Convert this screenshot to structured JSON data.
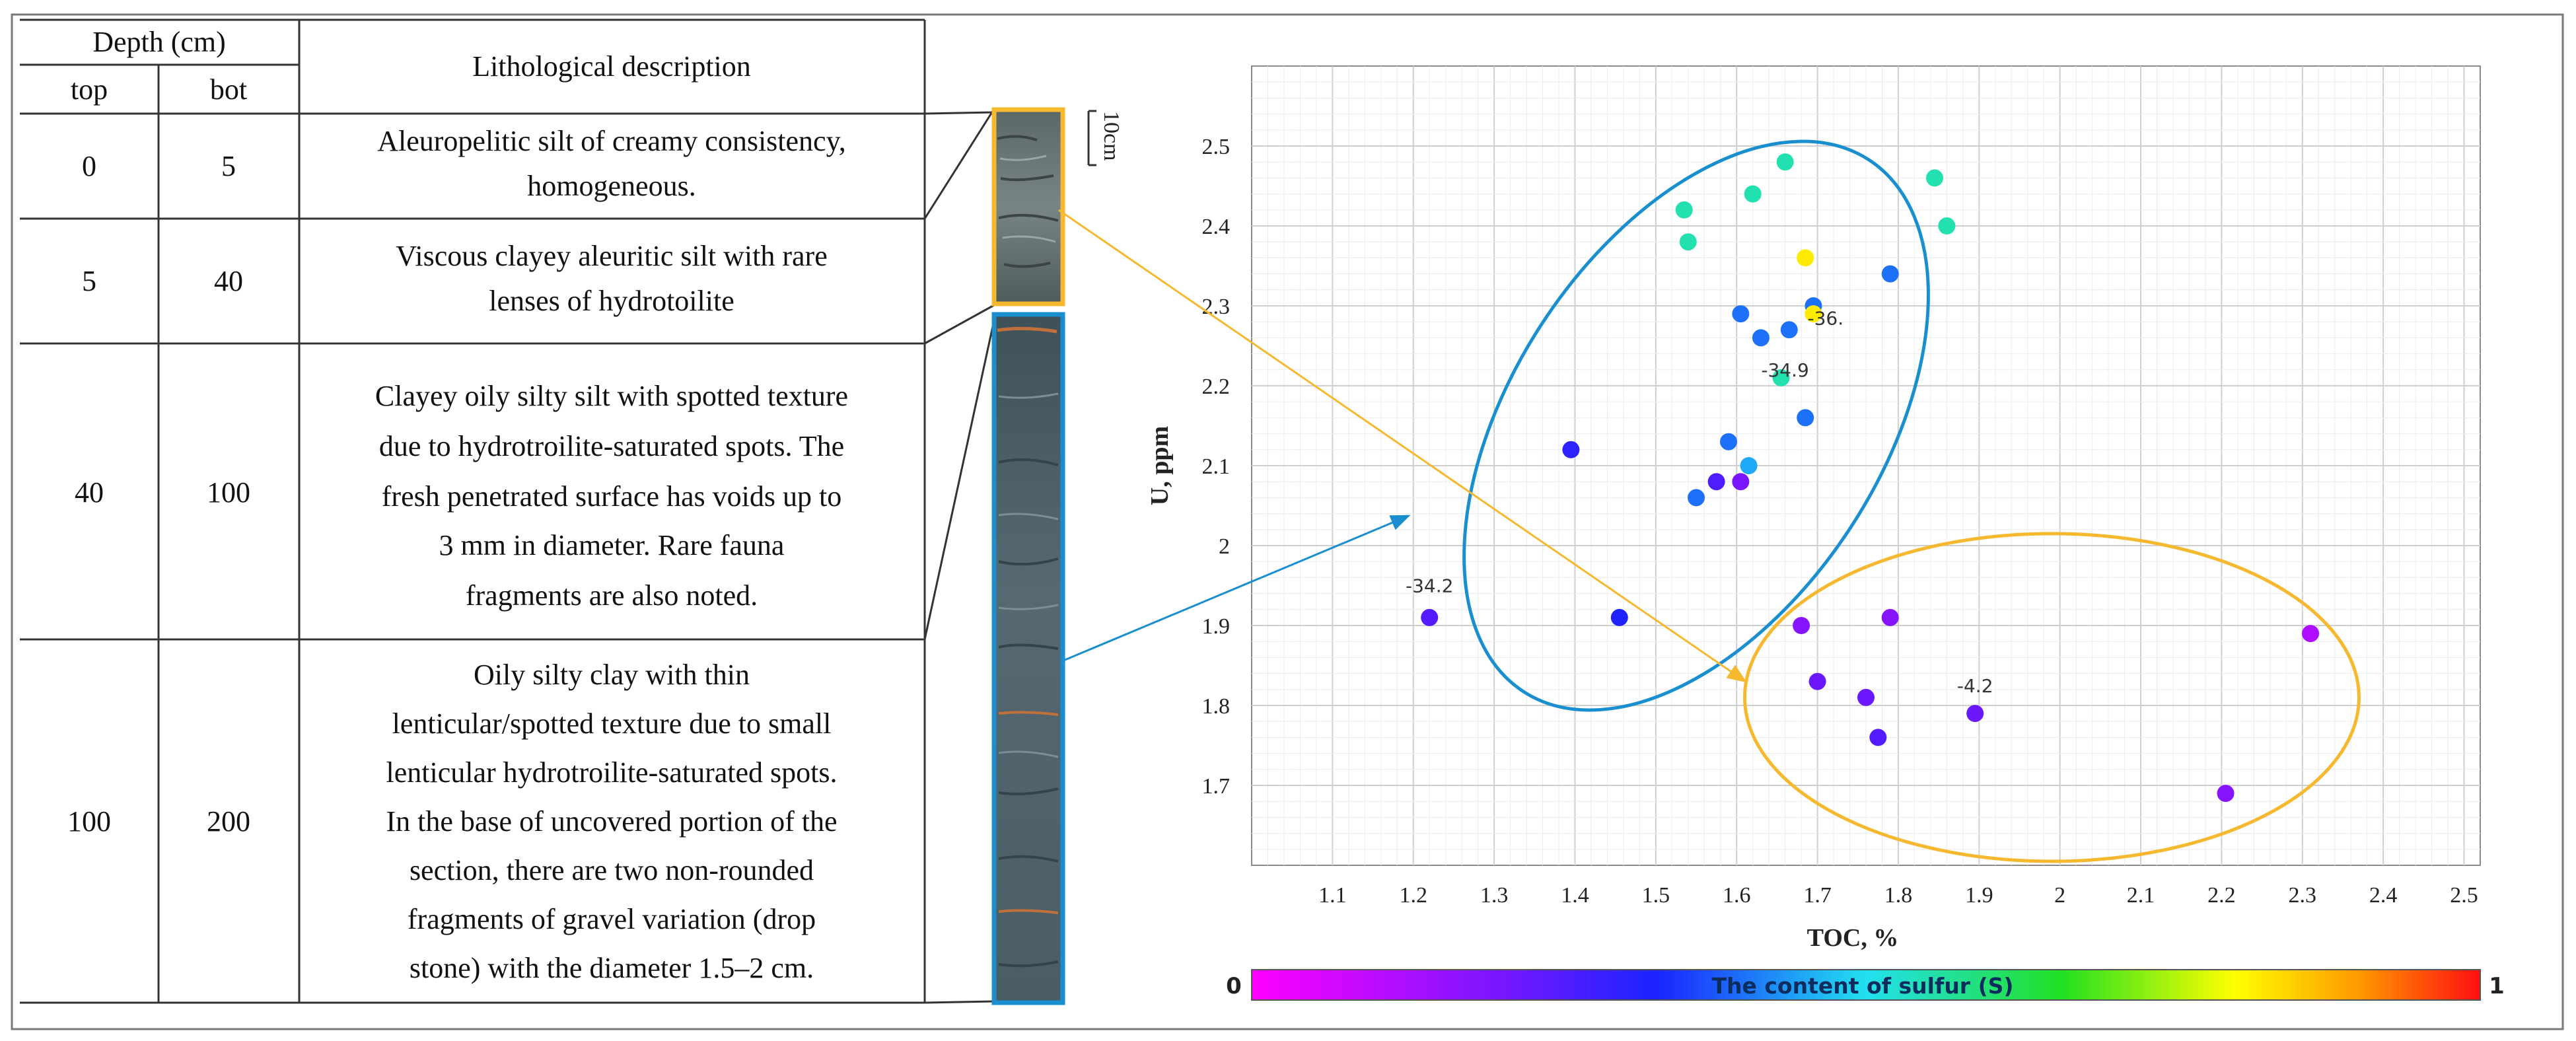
{
  "table": {
    "depth_header": "Depth (cm)",
    "top_header": "top",
    "bot_header": "bot",
    "desc_header": "Lithological description",
    "rows": [
      {
        "top": "0",
        "bot": "5",
        "lines": [
          "Aleuropelitic silt of creamy consistency,",
          "homogeneous."
        ]
      },
      {
        "top": "5",
        "bot": "40",
        "lines": [
          "Viscous clayey aleuritic silt with rare",
          "lenses of hydrotoilite"
        ]
      },
      {
        "top": "40",
        "bot": "100",
        "lines": [
          "Clayey oily silty silt with spotted texture",
          "due to hydrotroilite-saturated spots. The",
          "fresh penetrated surface has voids up to",
          "3 mm in diameter. Rare fauna",
          "fragments are also noted."
        ]
      },
      {
        "top": "100",
        "bot": "200",
        "lines": [
          "Oily silty clay with thin",
          "lenticular/spotted texture due to small",
          "lenticular hydrotroilite-saturated spots.",
          "In the base of uncovered portion of the",
          "section, there are two non-rounded",
          "fragments of gravel variation (drop",
          "stone) with the diameter 1.5–2 cm."
        ]
      }
    ]
  },
  "core": {
    "scale_label": "10cm"
  },
  "colors": {
    "blue_group": "#1a8fd0",
    "yellow_group": "#f5b82e",
    "border": "#555555"
  },
  "chart_data": {
    "type": "scatter",
    "xlabel": "TOC, %",
    "ylabel": "U, ppm",
    "xlim": [
      1.0,
      2.52
    ],
    "ylim": [
      1.6,
      2.6
    ],
    "xticks": [
      "1.1",
      "1.2",
      "1.3",
      "1.4",
      "1.5",
      "1.6",
      "1.7",
      "1.8",
      "1.9",
      "2",
      "2.1",
      "2.2",
      "2.3",
      "2.4",
      "2.5"
    ],
    "yticks": [
      "1.7",
      "1.8",
      "1.9",
      "2",
      "2.1",
      "2.2",
      "2.3",
      "2.4",
      "2.5"
    ],
    "colorbar": {
      "min_label": "0",
      "max_label": "1",
      "title": "The content of sulfur (S)"
    },
    "points": [
      {
        "x": 1.535,
        "y": 2.42,
        "c": 0.55
      },
      {
        "x": 1.54,
        "y": 2.38,
        "c": 0.55
      },
      {
        "x": 1.62,
        "y": 2.44,
        "c": 0.55
      },
      {
        "x": 1.66,
        "y": 2.48,
        "c": 0.55
      },
      {
        "x": 1.845,
        "y": 2.46,
        "c": 0.55
      },
      {
        "x": 1.86,
        "y": 2.4,
        "c": 0.55
      },
      {
        "x": 1.685,
        "y": 2.36,
        "c": 0.82
      },
      {
        "x": 1.79,
        "y": 2.34,
        "c": 0.4
      },
      {
        "x": 1.695,
        "y": 2.3,
        "c": 0.4
      },
      {
        "x": 1.695,
        "y": 2.29,
        "c": 0.82
      },
      {
        "x": 1.605,
        "y": 2.29,
        "c": 0.4
      },
      {
        "x": 1.665,
        "y": 2.27,
        "c": 0.4
      },
      {
        "x": 1.63,
        "y": 2.26,
        "c": 0.4
      },
      {
        "x": 1.655,
        "y": 2.21,
        "c": 0.55
      },
      {
        "x": 1.685,
        "y": 2.16,
        "c": 0.4
      },
      {
        "x": 1.59,
        "y": 2.13,
        "c": 0.4
      },
      {
        "x": 1.395,
        "y": 2.12,
        "c": 0.3
      },
      {
        "x": 1.615,
        "y": 2.1,
        "c": 0.45
      },
      {
        "x": 1.575,
        "y": 2.08,
        "c": 0.26
      },
      {
        "x": 1.605,
        "y": 2.08,
        "c": 0.2
      },
      {
        "x": 1.55,
        "y": 2.06,
        "c": 0.4
      },
      {
        "x": 1.22,
        "y": 1.91,
        "c": 0.25
      },
      {
        "x": 1.455,
        "y": 1.91,
        "c": 0.32
      },
      {
        "x": 1.68,
        "y": 1.9,
        "c": 0.18
      },
      {
        "x": 1.79,
        "y": 1.91,
        "c": 0.18
      },
      {
        "x": 2.31,
        "y": 1.89,
        "c": 0.12
      },
      {
        "x": 1.7,
        "y": 1.83,
        "c": 0.22
      },
      {
        "x": 1.76,
        "y": 1.81,
        "c": 0.22
      },
      {
        "x": 1.895,
        "y": 1.79,
        "c": 0.22
      },
      {
        "x": 1.775,
        "y": 1.76,
        "c": 0.25
      },
      {
        "x": 2.205,
        "y": 1.69,
        "c": 0.18
      }
    ],
    "annotations": [
      {
        "x": 1.71,
        "y": 2.27,
        "text": "-36."
      },
      {
        "x": 1.66,
        "y": 2.205,
        "text": "-34.9"
      },
      {
        "x": 1.22,
        "y": 1.935,
        "text": "-34.2"
      },
      {
        "x": 1.895,
        "y": 1.81,
        "text": "-4.2"
      }
    ],
    "groups": [
      {
        "name": "blue-ellipse",
        "cx": 1.55,
        "cy": 2.15,
        "rx": 0.44,
        "ry": 0.5,
        "color": "#1a8fd0"
      },
      {
        "name": "yellow-ellipse",
        "cx": 1.99,
        "cy": 1.81,
        "rx": 0.38,
        "ry": 0.205,
        "color": "#f5b82e"
      }
    ]
  }
}
